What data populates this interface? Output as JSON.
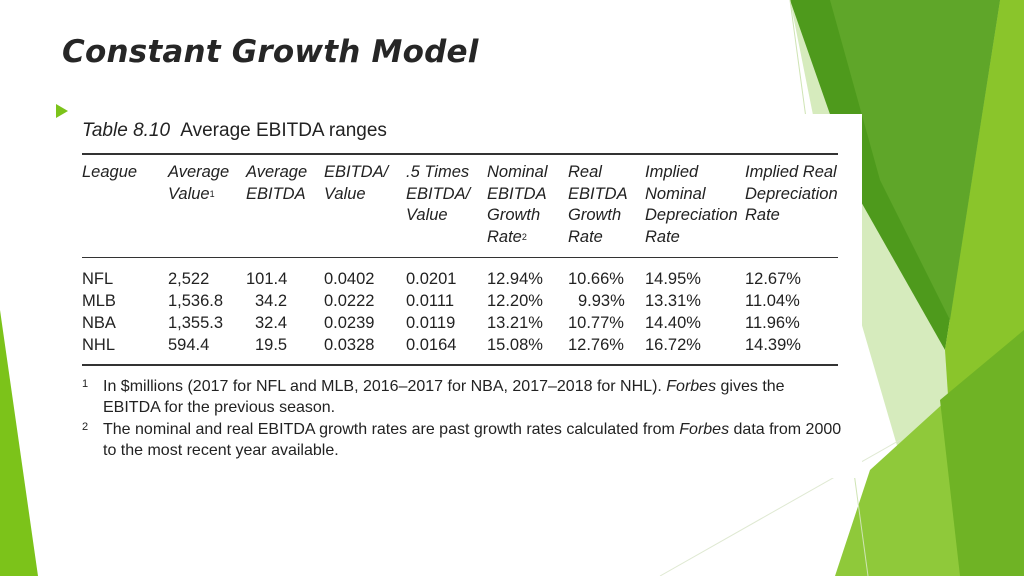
{
  "slide": {
    "title": "Constant Growth Model"
  },
  "table": {
    "caption_number": "Table 8.10",
    "caption_text": "Average EBITDA ranges",
    "headers": [
      {
        "text": "League",
        "sup": ""
      },
      {
        "text": "Average\nValue",
        "sup": "1"
      },
      {
        "text": "Average\nEBITDA",
        "sup": ""
      },
      {
        "text": "EBITDA/\nValue",
        "sup": ""
      },
      {
        "text": ".5 Times\nEBITDA/\nValue",
        "sup": ""
      },
      {
        "text": "Nominal\nEBITDA\nGrowth\nRate",
        "sup": "2"
      },
      {
        "text": "Real\nEBITDA\nGrowth\nRate",
        "sup": ""
      },
      {
        "text": "Implied\nNominal\nDepreciation\nRate",
        "sup": ""
      },
      {
        "text": "Implied Real\nDepreciation\nRate",
        "sup": ""
      }
    ],
    "rows": [
      [
        "NFL",
        "2,522",
        "101.4",
        "0.0402",
        "0.0201",
        "12.94%",
        "10.66%",
        "14.95%",
        "12.67%"
      ],
      [
        "MLB",
        "1,536.8",
        "34.2",
        "0.0222",
        "0.0111",
        "12.20%",
        "9.93%",
        "13.31%",
        "11.04%"
      ],
      [
        "NBA",
        "1,355.3",
        "32.4",
        "0.0239",
        "0.0119",
        "13.21%",
        "10.77%",
        "14.40%",
        "11.96%"
      ],
      [
        "NHL",
        "594.4",
        "19.5",
        "0.0328",
        "0.0164",
        "15.08%",
        "12.76%",
        "16.72%",
        "14.39%"
      ]
    ],
    "footnotes": [
      {
        "mark": "1",
        "before": "In $millions (2017 for NFL and MLB, 2016–2017 for NBA, 2017–2018 for NHL). ",
        "italic": "Forbes",
        "after": " gives the EBITDA for the previous season."
      },
      {
        "mark": "2",
        "before": "The nominal and real EBITDA growth rates are past growth rates calculated from ",
        "italic": "Forbes",
        "after": " data from 2000 to the most recent year available."
      }
    ]
  },
  "colors": {
    "accent_green": "#7cc31a",
    "dark_green": "#4e9a1c",
    "light_green": "#b9dc8a"
  }
}
